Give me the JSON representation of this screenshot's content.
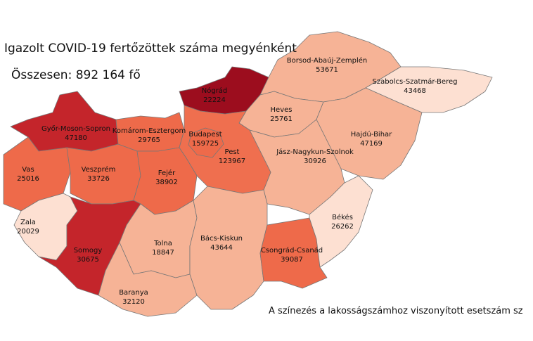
{
  "title": "Igazolt COVID-19 fertőzöttek száma megyénként",
  "total": "Összesen: 892 164 fő",
  "note": "A színezés a lakosságszámhoz viszonyított esetszám sz",
  "regions": [
    {
      "name": "Győr-Moson-Sopron",
      "value": 47180,
      "color": "#c4252b"
    },
    {
      "name": "Komárom-Esztergom",
      "value": 29765,
      "color": "#ee6a4a"
    },
    {
      "name": "Nógrád",
      "value": 22224,
      "color": "#9c0d1e"
    },
    {
      "name": "Borsod-Abaúj-Zemplén",
      "value": 53671,
      "color": "#f6b396"
    },
    {
      "name": "Szabolcs-Szatmár-Bereg",
      "value": 43468,
      "color": "#fde0d2"
    },
    {
      "name": "Heves",
      "value": 25761,
      "color": "#f6b396"
    },
    {
      "name": "Hajdú-Bihar",
      "value": 47169,
      "color": "#f6b396"
    },
    {
      "name": "Jász-Nagykun-Szolnok",
      "value": 30926,
      "color": "#f6b396"
    },
    {
      "name": "Pest",
      "value": 123967,
      "color": "#ef6f4f"
    },
    {
      "name": "Budapest",
      "value": 159725,
      "color": "#ee6a4a"
    },
    {
      "name": "Vas",
      "value": 25016,
      "color": "#ee6a4a"
    },
    {
      "name": "Veszprém",
      "value": 33726,
      "color": "#ee6a4a"
    },
    {
      "name": "Fejér",
      "value": 38902,
      "color": "#ee6a4a"
    },
    {
      "name": "Zala",
      "value": 20029,
      "color": "#fde0d2"
    },
    {
      "name": "Somogy",
      "value": 30675,
      "color": "#c4252b"
    },
    {
      "name": "Tolna",
      "value": 18847,
      "color": "#f6b396"
    },
    {
      "name": "Baranya",
      "value": 32120,
      "color": "#f6b396"
    },
    {
      "name": "Bács-Kiskun",
      "value": 43644,
      "color": "#f6b396"
    },
    {
      "name": "Csongrád-Csanád",
      "value": 39087,
      "color": "#ee6a4a"
    },
    {
      "name": "Békés",
      "value": 26262,
      "color": "#fde0d2"
    }
  ]
}
